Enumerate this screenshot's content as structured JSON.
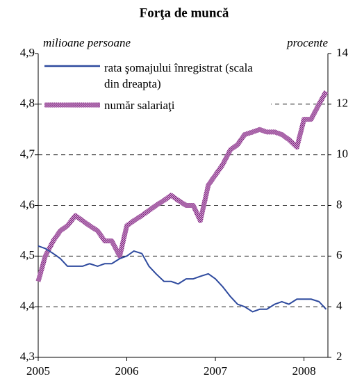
{
  "chart_data": {
    "type": "line",
    "title": "Forţa de muncă",
    "y_label": "milioane persoane",
    "y2_label": "procente",
    "xlim": [
      2005,
      2008.27
    ],
    "xticks": [
      2005,
      2006,
      2007,
      2008
    ],
    "ylim": [
      4.3,
      4.9
    ],
    "yticks": [
      {
        "value": 4.3,
        "label": "4,3"
      },
      {
        "value": 4.4,
        "label": "4,4"
      },
      {
        "value": 4.5,
        "label": "4,5"
      },
      {
        "value": 4.6,
        "label": "4,6"
      },
      {
        "value": 4.7,
        "label": "4,7"
      },
      {
        "value": 4.8,
        "label": "4,8"
      },
      {
        "value": 4.9,
        "label": "4,9"
      }
    ],
    "y2lim": [
      2,
      14
    ],
    "y2ticks": [
      2,
      4,
      6,
      8,
      10,
      12,
      14
    ],
    "grid": true,
    "x": [
      2005,
      2005.08,
      2005.17,
      2005.25,
      2005.33,
      2005.42,
      2005.5,
      2005.58,
      2005.67,
      2005.75,
      2005.83,
      2005.92,
      2006,
      2006.08,
      2006.17,
      2006.25,
      2006.33,
      2006.42,
      2006.5,
      2006.58,
      2006.67,
      2006.75,
      2006.83,
      2006.92,
      2007,
      2007.08,
      2007.17,
      2007.25,
      2007.33,
      2007.42,
      2007.5,
      2007.58,
      2007.67,
      2007.75,
      2007.83,
      2007.92,
      2008,
      2008.08,
      2008.17,
      2008.25
    ],
    "series": [
      {
        "name": "rata şomajului înregistrat (scala din dreapta)",
        "color": "#2e4a9e",
        "axis": "y2",
        "values": [
          6.4,
          6.3,
          6.1,
          5.9,
          5.6,
          5.6,
          5.6,
          5.7,
          5.6,
          5.7,
          5.7,
          5.9,
          6.0,
          6.2,
          6.1,
          5.6,
          5.3,
          5.0,
          5.0,
          4.9,
          5.1,
          5.1,
          5.2,
          5.3,
          5.1,
          4.8,
          4.4,
          4.1,
          4.0,
          3.8,
          3.9,
          3.9,
          4.1,
          4.2,
          4.1,
          4.3,
          4.3,
          4.3,
          4.2,
          3.9
        ]
      },
      {
        "name": "număr salariaţi",
        "color": "#d9a3d9",
        "axis": "y",
        "values": [
          4.45,
          4.5,
          4.53,
          4.55,
          4.56,
          4.58,
          4.57,
          4.56,
          4.55,
          4.53,
          4.53,
          4.5,
          4.56,
          4.57,
          4.58,
          4.59,
          4.6,
          4.61,
          4.62,
          4.61,
          4.6,
          4.6,
          4.57,
          4.64,
          4.66,
          4.68,
          4.71,
          4.72,
          4.74,
          4.745,
          4.75,
          4.745,
          4.745,
          4.74,
          4.73,
          4.715,
          4.77,
          4.77,
          4.8,
          4.825
        ]
      }
    ]
  }
}
